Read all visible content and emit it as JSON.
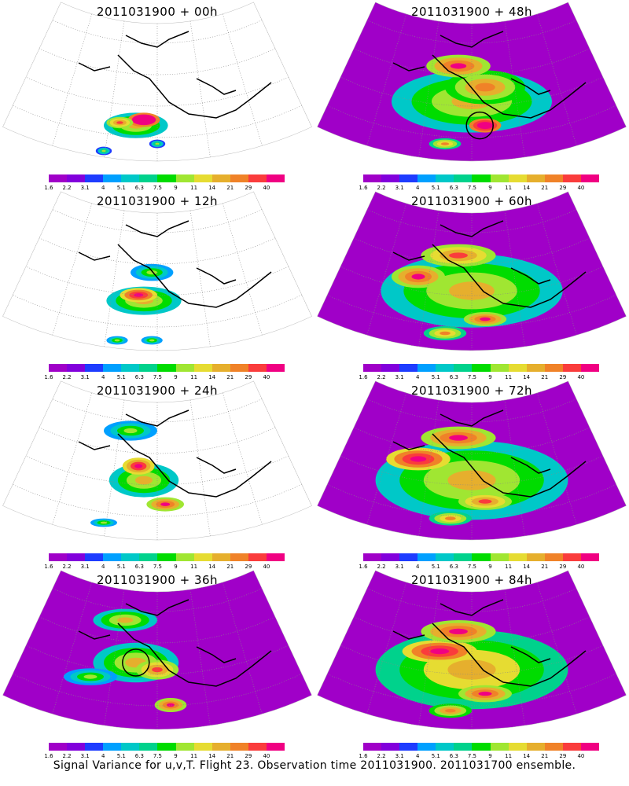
{
  "footer": "Signal Variance for u,v,T. Flight 23. Observation time 2011031900. 2011031700 ensemble.",
  "colorbar": {
    "colors": [
      "#a000c8",
      "#8200dc",
      "#1e3cff",
      "#00a0ff",
      "#00c8c8",
      "#00d28c",
      "#00dc00",
      "#a0e632",
      "#e6dc32",
      "#e6af2d",
      "#f08228",
      "#fa3c3c",
      "#f00082"
    ],
    "labels": [
      "1.6",
      "2.2",
      "3.1",
      "4",
      "5.1",
      "6.3",
      "7.5",
      "9",
      "11",
      "14",
      "21",
      "29",
      "40"
    ]
  },
  "panels": [
    {
      "title": "2011031900 + 00h",
      "blobs": [
        [
          0.42,
          0.72,
          0.12,
          0.09,
          0.35
        ],
        [
          0.45,
          0.68,
          0.06,
          0.05,
          0.85
        ],
        [
          0.36,
          0.7,
          0.05,
          0.04,
          0.55
        ],
        [
          0.3,
          0.9,
          0.03,
          0.03,
          0.2
        ],
        [
          0.5,
          0.85,
          0.03,
          0.03,
          0.2
        ]
      ],
      "circle": null
    },
    {
      "title": "2011031900 + 12h",
      "blobs": [
        [
          0.45,
          0.62,
          0.14,
          0.1,
          0.35
        ],
        [
          0.43,
          0.58,
          0.07,
          0.05,
          0.7
        ],
        [
          0.48,
          0.42,
          0.08,
          0.06,
          0.25
        ],
        [
          0.35,
          0.9,
          0.04,
          0.03,
          0.25
        ],
        [
          0.48,
          0.9,
          0.04,
          0.03,
          0.25
        ]
      ],
      "circle": null
    },
    {
      "title": "2011031900 + 24h",
      "blobs": [
        [
          0.45,
          0.55,
          0.13,
          0.12,
          0.35
        ],
        [
          0.43,
          0.45,
          0.06,
          0.06,
          0.65
        ],
        [
          0.53,
          0.72,
          0.07,
          0.05,
          0.6
        ],
        [
          0.4,
          0.2,
          0.1,
          0.07,
          0.25
        ],
        [
          0.3,
          0.85,
          0.05,
          0.03,
          0.25
        ]
      ],
      "circle": null
    },
    {
      "title": "2011031900 + 36h",
      "blobs": [
        [
          0.42,
          0.5,
          0.16,
          0.14,
          0.35
        ],
        [
          0.5,
          0.55,
          0.08,
          0.07,
          0.55
        ],
        [
          0.55,
          0.8,
          0.06,
          0.05,
          0.6
        ],
        [
          0.38,
          0.2,
          0.12,
          0.08,
          0.35
        ],
        [
          0.25,
          0.6,
          0.1,
          0.06,
          0.25
        ]
      ],
      "circle": [
        0.42,
        0.5
      ]
    },
    {
      "title": "2011031900 + 48h",
      "blobs": [
        [
          0.5,
          0.55,
          0.3,
          0.22,
          0.35
        ],
        [
          0.55,
          0.45,
          0.15,
          0.12,
          0.5
        ],
        [
          0.55,
          0.72,
          0.06,
          0.05,
          0.8
        ],
        [
          0.45,
          0.3,
          0.12,
          0.08,
          0.6
        ],
        [
          0.4,
          0.85,
          0.06,
          0.04,
          0.45
        ]
      ],
      "circle": [
        0.53,
        0.72
      ]
    },
    {
      "title": "2011031900 + 60h",
      "blobs": [
        [
          0.5,
          0.55,
          0.34,
          0.26,
          0.35
        ],
        [
          0.3,
          0.45,
          0.1,
          0.08,
          0.6
        ],
        [
          0.55,
          0.75,
          0.08,
          0.05,
          0.6
        ],
        [
          0.45,
          0.3,
          0.14,
          0.08,
          0.55
        ],
        [
          0.4,
          0.85,
          0.08,
          0.05,
          0.45
        ]
      ],
      "circle": null
    },
    {
      "title": "2011031900 + 72h",
      "blobs": [
        [
          0.5,
          0.55,
          0.36,
          0.28,
          0.35
        ],
        [
          0.3,
          0.4,
          0.12,
          0.08,
          0.7
        ],
        [
          0.55,
          0.7,
          0.1,
          0.06,
          0.55
        ],
        [
          0.45,
          0.25,
          0.14,
          0.08,
          0.6
        ],
        [
          0.42,
          0.82,
          0.08,
          0.05,
          0.45
        ]
      ],
      "circle": null
    },
    {
      "title": "2011031900 + 84h",
      "blobs": [
        [
          0.5,
          0.55,
          0.36,
          0.28,
          0.4
        ],
        [
          0.38,
          0.42,
          0.14,
          0.08,
          0.7
        ],
        [
          0.55,
          0.72,
          0.1,
          0.06,
          0.6
        ],
        [
          0.45,
          0.28,
          0.14,
          0.08,
          0.6
        ],
        [
          0.42,
          0.84,
          0.08,
          0.05,
          0.5
        ]
      ],
      "circle": null
    }
  ]
}
